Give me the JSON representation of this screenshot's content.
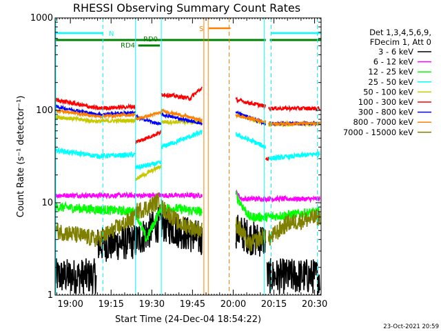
{
  "chart_data": {
    "type": "line",
    "title": "RHESSI Observing Summary Count Rates",
    "xlabel": "Start Time (24-Dec-04 18:54:22)",
    "ylabel": "Count Rate (s⁻¹ detector⁻¹)",
    "x_tick_labels": [
      "19:00",
      "19:15",
      "19:30",
      "19:45",
      "20:00",
      "20:15",
      "20:30"
    ],
    "x_ticks_minutes": [
      0,
      15,
      30,
      45,
      60,
      75,
      90
    ],
    "xlim_minutes": [
      -5.63,
      92.4
    ],
    "y_scale": "log",
    "ylim": [
      1,
      1000
    ],
    "y_tick_labels": [
      "1",
      "10",
      "100",
      "1000"
    ],
    "y_tick_values": [
      1,
      10,
      100,
      1000
    ],
    "legend": {
      "placement": "right",
      "header": [
        "Det 1,3,4,5,6,9,",
        "FDecim 1, Att 0"
      ],
      "entries": [
        {
          "label": "3 - 6 keV",
          "color": "#000000"
        },
        {
          "label": "6 - 12 keV",
          "color": "#ff00ff"
        },
        {
          "label": "12 - 25 keV",
          "color": "#00ff00"
        },
        {
          "label": "25 - 50 keV",
          "color": "#00ffff"
        },
        {
          "label": "50 - 100 keV",
          "color": "#c8c800"
        },
        {
          "label": "100 - 300 keV",
          "color": "#ff0000"
        },
        {
          "label": "300 - 800 keV",
          "color": "#0000ff"
        },
        {
          "label": "800 - 7000 keV",
          "color": "#ff8000"
        },
        {
          "label": "7000 - 15000 keV",
          "color": "#808000"
        }
      ]
    },
    "flags": [
      {
        "label": "N",
        "color": "#00ffff",
        "segments": [
          [
            -5.63,
            12
          ],
          [
            74,
            92.4
          ]
        ]
      },
      {
        "label": "RD0",
        "color": "#008000",
        "segments": [
          [
            -5.63,
            72
          ],
          [
            73.5,
            92.4
          ]
        ]
      },
      {
        "label": "RD4",
        "color": "#008000",
        "segments": [
          [
            25,
            33
          ]
        ]
      },
      {
        "label": "S",
        "color": "#ff8000",
        "segments": [
          [
            51,
            59
          ]
        ]
      }
    ],
    "vlines": [
      {
        "x": 12,
        "color": "#00ffff",
        "style": "dashed"
      },
      {
        "x": 74,
        "color": "#00ffff",
        "style": "dashed"
      },
      {
        "x": 91,
        "color": "#00ffff",
        "style": "dashed"
      },
      {
        "x": 24,
        "color": "#00ffff",
        "style": "solid"
      },
      {
        "x": 33.5,
        "color": "#00ffff",
        "style": "solid"
      },
      {
        "x": 71.5,
        "color": "#00ffff",
        "style": "solid"
      },
      {
        "x": -5.4,
        "color": "#00ffff",
        "style": "solid"
      },
      {
        "x": 49.2,
        "color": "#ff8000",
        "style": "solid"
      },
      {
        "x": 50.8,
        "color": "#ff8000",
        "style": "solid"
      },
      {
        "x": 58.5,
        "color": "#ff8000",
        "style": "dashed"
      }
    ],
    "series": [
      {
        "name": "3 - 6 keV",
        "color": "#000000",
        "noise": 0.45,
        "segments": [
          {
            "x": [
              -5.5,
              5,
              9.5
            ],
            "y": [
              1.6,
              1.6,
              1.6
            ]
          },
          {
            "x": [
              9.5,
              24,
              33,
              48.5
            ],
            "y": [
              3.5,
              3.8,
              6,
              4
            ]
          },
          {
            "x": [
              61,
              68,
              72
            ],
            "y": [
              5,
              4,
              4
            ]
          },
          {
            "x": [
              72.5,
              80,
              92
            ],
            "y": [
              1.6,
              1.6,
              1.6
            ]
          }
        ]
      },
      {
        "name": "6 - 12 keV",
        "color": "#ff00ff",
        "noise": 0.06,
        "segments": [
          {
            "x": [
              -5.5,
              24,
              33.5,
              48.5
            ],
            "y": [
              12,
              12,
              12,
              12
            ]
          },
          {
            "x": [
              61,
              63,
              70,
              92
            ],
            "y": [
              13,
              11,
              11,
              11
            ]
          }
        ]
      },
      {
        "name": "12 - 25 keV",
        "color": "#00ff00",
        "noise": 0.12,
        "segments": [
          {
            "x": [
              -5.5,
              24,
              28,
              33.5,
              48.5
            ],
            "y": [
              9,
              8,
              4,
              9,
              8
            ]
          },
          {
            "x": [
              61,
              66,
              72,
              92
            ],
            "y": [
              12,
              7,
              7,
              8
            ]
          }
        ]
      },
      {
        "name": "25 - 50 keV",
        "color": "#00ffff",
        "noise": 0.06,
        "segments": [
          {
            "x": [
              -5.5,
              10,
              24
            ],
            "y": [
              37,
              32,
              33
            ]
          },
          {
            "x": [
              24,
              33.5
            ],
            "y": [
              24,
              27
            ]
          },
          {
            "x": [
              33.5,
              48.5
            ],
            "y": [
              40,
              58
            ]
          },
          {
            "x": [
              61,
              72
            ],
            "y": [
              55,
              40
            ]
          },
          {
            "x": [
              73,
              92
            ],
            "y": [
              30,
              34
            ]
          }
        ]
      },
      {
        "name": "50 - 100 keV",
        "color": "#c8c800",
        "noise": 0.05,
        "segments": [
          {
            "x": [
              -5.5,
              10,
              24
            ],
            "y": [
              85,
              76,
              78
            ]
          },
          {
            "x": [
              24,
              33.5
            ],
            "y": [
              18,
              25
            ]
          },
          {
            "x": [
              33.5,
              48.5
            ],
            "y": [
              75,
              75
            ]
          },
          {
            "x": [
              61,
              72
            ],
            "y": [
              90,
              72
            ]
          },
          {
            "x": [
              73,
              92
            ],
            "y": [
              70,
              72
            ]
          }
        ]
      },
      {
        "name": "100 - 300 keV",
        "color": "#ff0000",
        "noise": 0.05,
        "segments": [
          {
            "x": [
              -5.5,
              10,
              24
            ],
            "y": [
              130,
              105,
              110
            ]
          },
          {
            "x": [
              24,
              33.5
            ],
            "y": [
              45,
              58
            ]
          },
          {
            "x": [
              33.5,
              44,
              48.5
            ],
            "y": [
              150,
              135,
              175
            ]
          },
          {
            "x": [
              61,
              72
            ],
            "y": [
              130,
              110
            ]
          },
          {
            "x": [
              72,
              73
            ],
            "y": [
              30,
              30
            ]
          },
          {
            "x": [
              73,
              92
            ],
            "y": [
              105,
              105
            ]
          }
        ]
      },
      {
        "name": "300 - 800 keV",
        "color": "#0000ff",
        "noise": 0.04,
        "segments": [
          {
            "x": [
              -5.5,
              10,
              24
            ],
            "y": [
              110,
              90,
              95
            ]
          },
          {
            "x": [
              24,
              33.5
            ],
            "y": [
              85,
              70
            ]
          },
          {
            "x": [
              33.5,
              48.5
            ],
            "y": [
              90,
              72
            ]
          },
          {
            "x": [
              61,
              72
            ],
            "y": [
              95,
              72
            ]
          },
          {
            "x": [
              73,
              92
            ],
            "y": [
              72,
              72
            ]
          }
        ]
      },
      {
        "name": "800 - 7000 keV",
        "color": "#ff8000",
        "noise": 0.04,
        "segments": [
          {
            "x": [
              -5.5,
              10,
              24
            ],
            "y": [
              100,
              86,
              90
            ]
          },
          {
            "x": [
              24,
              33.5
            ],
            "y": [
              80,
              95
            ]
          },
          {
            "x": [
              33.5,
              48.5
            ],
            "y": [
              100,
              78
            ]
          },
          {
            "x": [
              61,
              72
            ],
            "y": [
              88,
              75
            ]
          },
          {
            "x": [
              73,
              92
            ],
            "y": [
              72,
              72
            ]
          }
        ]
      },
      {
        "name": "7000 - 15000 keV",
        "color": "#808000",
        "noise": 0.22,
        "segments": [
          {
            "x": [
              -5.5,
              10,
              24
            ],
            "y": [
              5,
              4,
              7
            ]
          },
          {
            "x": [
              24,
              29,
              33.5
            ],
            "y": [
              8,
              9,
              11
            ]
          },
          {
            "x": [
              33.5,
              40,
              48.5
            ],
            "y": [
              9,
              6,
              5
            ]
          },
          {
            "x": [
              61,
              66,
              72
            ],
            "y": [
              6,
              3.5,
              4.5
            ]
          },
          {
            "x": [
              73,
              80,
              92
            ],
            "y": [
              4,
              6,
              7
            ]
          }
        ]
      }
    ]
  },
  "footer": {
    "timestamp": "23-Oct-2021 20:59"
  }
}
